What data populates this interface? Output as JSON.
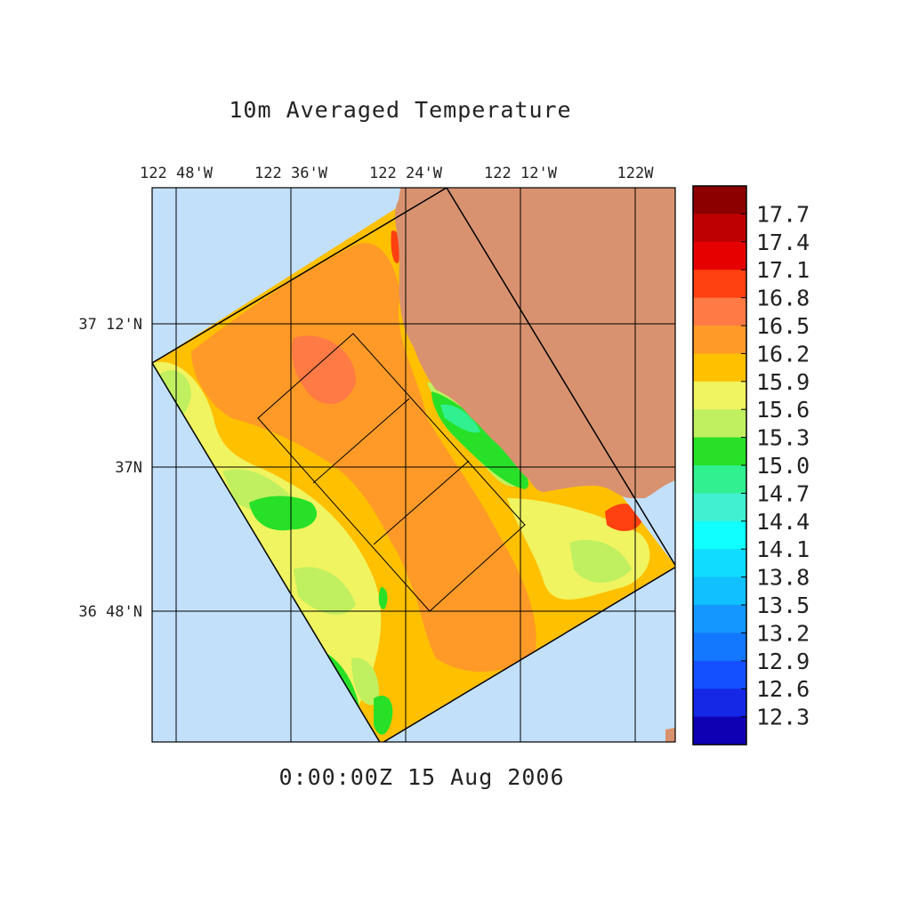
{
  "title": "10m Averaged Temperature",
  "timestamp": "0:00:00Z  15 Aug 2006",
  "longitude_labels": [
    "122 48'W",
    "122 36'W",
    "122 24'W",
    "122 12'W",
    "122W"
  ],
  "latitude_labels": [
    "37 12'N",
    "37N",
    "36 48'N"
  ],
  "colorbar": {
    "labels": [
      "17.7",
      "17.4",
      "17.1",
      "16.8",
      "16.5",
      "16.2",
      "15.9",
      "15.6",
      "15.3",
      "15.0",
      "14.7",
      "14.4",
      "14.1",
      "13.8",
      "13.5",
      "13.2",
      "12.9",
      "12.6",
      "12.3"
    ],
    "colors": [
      "#8c0000",
      "#be0000",
      "#e60000",
      "#ff4010",
      "#ff7a45",
      "#ff9a28",
      "#ffc000",
      "#f0f460",
      "#c0f060",
      "#28e028",
      "#30f090",
      "#40f0d0",
      "#10ffff",
      "#10dcff",
      "#10c0ff",
      "#1498ff",
      "#1478ff",
      "#1450ff",
      "#1428e6",
      "#1000b4"
    ]
  },
  "colors": {
    "ocean": "#c3e0fb",
    "land": "#d9926f",
    "grid": "#000000"
  }
}
